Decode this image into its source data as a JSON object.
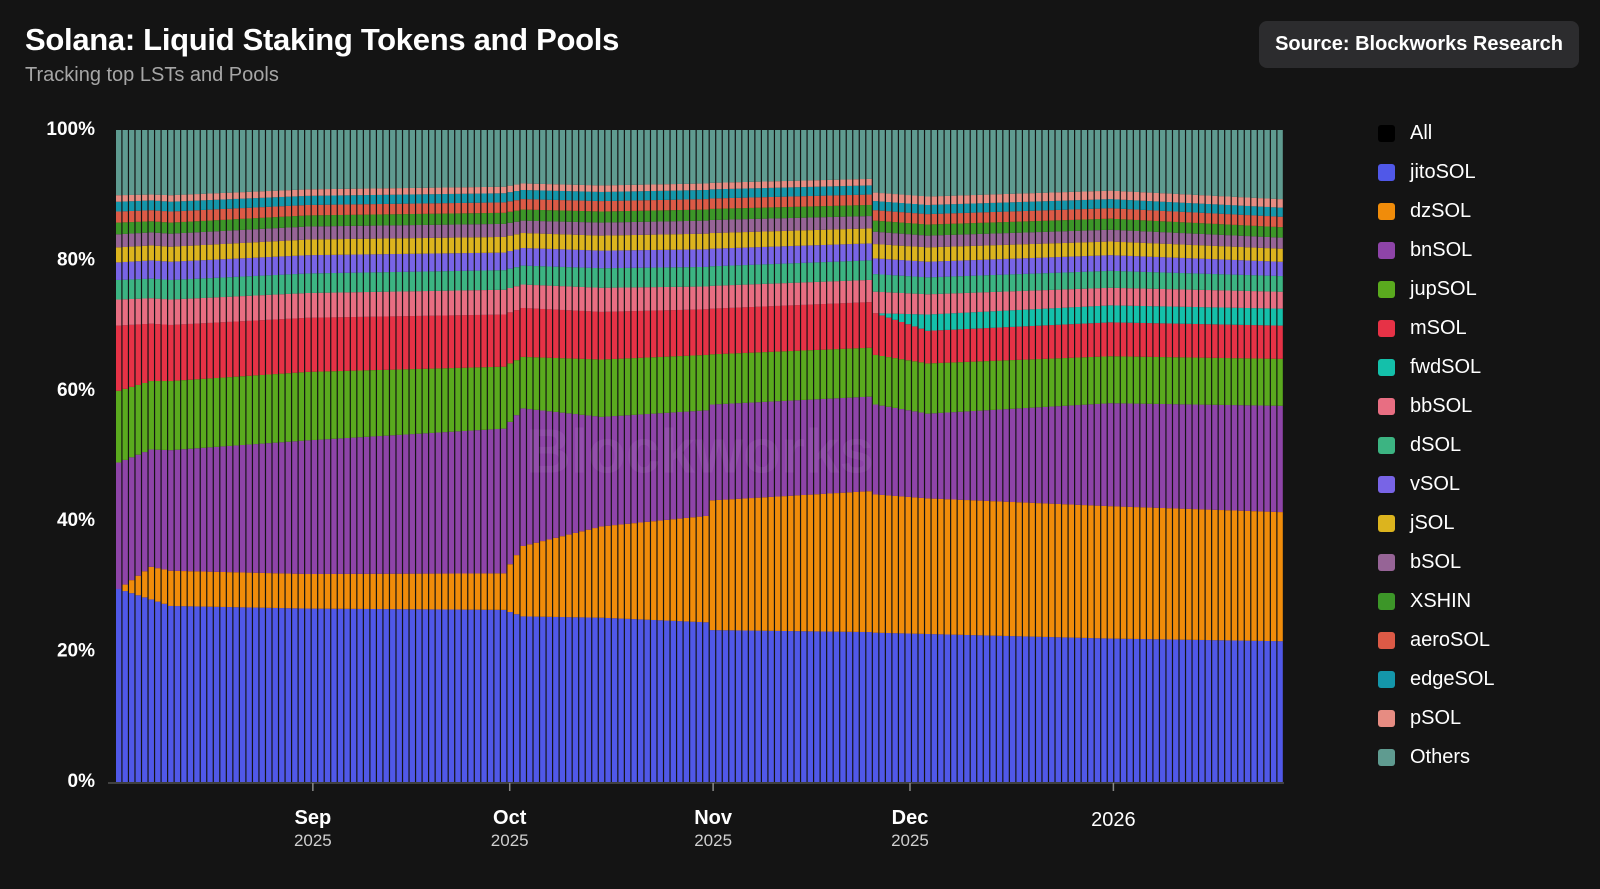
{
  "header": {
    "title": "Solana: Liquid Staking Tokens and Pools",
    "subtitle": "Tracking top LSTs and Pools",
    "source": "Source: Blockworks Research"
  },
  "watermark": "Blockworks",
  "legend": {
    "items": [
      {
        "label": "All",
        "color": "#000000"
      },
      {
        "label": "jitoSOL",
        "color": "#5058e8"
      },
      {
        "label": "dzSOL",
        "color": "#f08c0a"
      },
      {
        "label": "bnSOL",
        "color": "#8e44a8"
      },
      {
        "label": "jupSOL",
        "color": "#5aaa1e"
      },
      {
        "label": "mSOL",
        "color": "#e63246"
      },
      {
        "label": "fwdSOL",
        "color": "#14c0aa"
      },
      {
        "label": "bbSOL",
        "color": "#e86e82"
      },
      {
        "label": "dSOL",
        "color": "#3cb482"
      },
      {
        "label": "vSOL",
        "color": "#7864e6"
      },
      {
        "label": "jSOL",
        "color": "#dcb41e"
      },
      {
        "label": "bSOL",
        "color": "#966496"
      },
      {
        "label": "XSHIN",
        "color": "#3c9628"
      },
      {
        "label": "aeroSOL",
        "color": "#dc5a46"
      },
      {
        "label": "edgeSOL",
        "color": "#1496aa"
      },
      {
        "label": "pSOL",
        "color": "#e68c82"
      },
      {
        "label": "Others",
        "color": "#5f9b90"
      }
    ]
  },
  "chart_data": {
    "type": "bar",
    "stacked": true,
    "normalized": true,
    "title": "Solana: Liquid Staking Tokens and Pools",
    "subtitle": "Tracking top LSTs and Pools",
    "xlabel": "",
    "ylabel": "",
    "ylim": [
      0,
      100
    ],
    "y_ticks": [
      "0%",
      "20%",
      "40%",
      "60%",
      "80%",
      "100%"
    ],
    "x_ticks": [
      {
        "month": "Sep",
        "year": "2025",
        "date": "2025-09-01"
      },
      {
        "month": "Oct",
        "year": "2025",
        "date": "2025-10-01"
      },
      {
        "month": "Nov",
        "year": "2025",
        "date": "2025-11-01"
      },
      {
        "month": "Dec",
        "year": "2025",
        "date": "2025-12-01"
      },
      {
        "month": "",
        "year": "2026",
        "date": "2026-01-01"
      }
    ],
    "x_range": [
      "2025-08-02",
      "2026-01-27"
    ],
    "grid": false,
    "legend_position": "right",
    "bar_count": 179,
    "series_order": [
      "jitoSOL",
      "dzSOL",
      "bnSOL",
      "jupSOL",
      "mSOL",
      "fwdSOL",
      "bbSOL",
      "dSOL",
      "vSOL",
      "jSOL",
      "bSOL",
      "XSHIN",
      "aeroSOL",
      "edgeSOL",
      "pSOL",
      "Others"
    ],
    "keyframes": [
      {
        "date": "2025-08-02",
        "values": {
          "jitoSOL": 29.6,
          "dzSOL": 0.0,
          "bnSOL": 19.4,
          "jupSOL": 11.0,
          "mSOL": 10.0,
          "fwdSOL": 0.0,
          "bbSOL": 4.0,
          "dSOL": 3.0,
          "vSOL": 2.7,
          "jSOL": 2.3,
          "bSOL": 2.0,
          "XSHIN": 1.8,
          "aeroSOL": 1.7,
          "edgeSOL": 1.5,
          "pSOL": 1.0,
          "Others": 10.0
        }
      },
      {
        "date": "2025-08-07",
        "values": {
          "jitoSOL": 28.0,
          "dzSOL": 5.0,
          "bnSOL": 18.0,
          "jupSOL": 10.5,
          "mSOL": 8.8,
          "fwdSOL": 0.0,
          "bbSOL": 3.9,
          "dSOL": 3.0,
          "vSOL": 2.8,
          "jSOL": 2.3,
          "bSOL": 2.0,
          "XSHIN": 1.7,
          "aeroSOL": 1.7,
          "edgeSOL": 1.5,
          "pSOL": 0.9,
          "Others": 9.9
        }
      },
      {
        "date": "2025-08-10",
        "values": {
          "jitoSOL": 27.0,
          "dzSOL": 5.4,
          "bnSOL": 18.5,
          "jupSOL": 10.6,
          "mSOL": 8.6,
          "fwdSOL": 0.0,
          "bbSOL": 3.9,
          "dSOL": 3.0,
          "vSOL": 2.8,
          "jSOL": 2.3,
          "bSOL": 2.0,
          "XSHIN": 1.7,
          "aeroSOL": 1.7,
          "edgeSOL": 1.5,
          "pSOL": 1.0,
          "Others": 10.0
        }
      },
      {
        "date": "2025-08-31",
        "values": {
          "jitoSOL": 26.6,
          "dzSOL": 5.3,
          "bnSOL": 20.5,
          "jupSOL": 10.5,
          "mSOL": 8.3,
          "fwdSOL": 0.0,
          "bbSOL": 3.8,
          "dSOL": 3.0,
          "vSOL": 2.8,
          "jSOL": 2.4,
          "bSOL": 2.0,
          "XSHIN": 1.7,
          "aeroSOL": 1.6,
          "edgeSOL": 1.4,
          "pSOL": 1.0,
          "Others": 9.1
        }
      },
      {
        "date": "2025-09-30",
        "values": {
          "jitoSOL": 26.4,
          "dzSOL": 5.6,
          "bnSOL": 22.2,
          "jupSOL": 9.5,
          "mSOL": 8.0,
          "fwdSOL": 0.0,
          "bbSOL": 3.8,
          "dSOL": 3.0,
          "vSOL": 2.7,
          "jSOL": 2.4,
          "bSOL": 2.0,
          "XSHIN": 1.7,
          "aeroSOL": 1.6,
          "edgeSOL": 1.4,
          "pSOL": 1.0,
          "Others": 8.7
        }
      },
      {
        "date": "2025-10-03",
        "values": {
          "jitoSOL": 25.4,
          "dzSOL": 10.8,
          "bnSOL": 21.1,
          "jupSOL": 7.9,
          "mSOL": 7.5,
          "fwdSOL": 0.0,
          "bbSOL": 3.6,
          "dSOL": 2.9,
          "vSOL": 2.7,
          "jSOL": 2.3,
          "bSOL": 1.9,
          "XSHIN": 1.7,
          "aeroSOL": 1.6,
          "edgeSOL": 1.4,
          "pSOL": 1.0,
          "Others": 8.2
        }
      },
      {
        "date": "2025-10-15",
        "values": {
          "jitoSOL": 25.2,
          "dzSOL": 14.0,
          "bnSOL": 16.8,
          "jupSOL": 8.8,
          "mSOL": 7.3,
          "fwdSOL": 0.0,
          "bbSOL": 3.7,
          "dSOL": 3.0,
          "vSOL": 2.7,
          "jSOL": 2.3,
          "bSOL": 2.0,
          "XSHIN": 1.7,
          "aeroSOL": 1.6,
          "edgeSOL": 1.4,
          "pSOL": 1.0,
          "Others": 8.5
        }
      },
      {
        "date": "2025-10-31",
        "values": {
          "jitoSOL": 24.5,
          "dzSOL": 16.3,
          "bnSOL": 16.2,
          "jupSOL": 8.5,
          "mSOL": 7.0,
          "fwdSOL": 0.0,
          "bbSOL": 3.5,
          "dSOL": 3.0,
          "vSOL": 2.7,
          "jSOL": 2.4,
          "bSOL": 2.0,
          "XSHIN": 1.7,
          "aeroSOL": 1.6,
          "edgeSOL": 1.4,
          "pSOL": 1.0,
          "Others": 8.2
        }
      },
      {
        "date": "2025-11-01",
        "values": {
          "jitoSOL": 23.3,
          "dzSOL": 19.9,
          "bnSOL": 14.7,
          "jupSOL": 7.7,
          "mSOL": 7.0,
          "fwdSOL": 0.0,
          "bbSOL": 3.5,
          "dSOL": 3.0,
          "vSOL": 2.7,
          "jSOL": 2.4,
          "bSOL": 2.0,
          "XSHIN": 1.7,
          "aeroSOL": 1.6,
          "edgeSOL": 1.4,
          "pSOL": 1.0,
          "Others": 8.1
        }
      },
      {
        "date": "2025-11-25",
        "values": {
          "jitoSOL": 23.0,
          "dzSOL": 21.6,
          "bnSOL": 14.5,
          "jupSOL": 7.5,
          "mSOL": 7.0,
          "fwdSOL": 0.0,
          "bbSOL": 3.4,
          "dSOL": 3.0,
          "vSOL": 2.6,
          "jSOL": 2.3,
          "bSOL": 1.9,
          "XSHIN": 1.7,
          "aeroSOL": 1.6,
          "edgeSOL": 1.4,
          "pSOL": 1.0,
          "Others": 7.5
        }
      },
      {
        "date": "2025-11-26",
        "values": {
          "jitoSOL": 22.9,
          "dzSOL": 21.2,
          "bnSOL": 13.8,
          "jupSOL": 7.6,
          "mSOL": 6.4,
          "fwdSOL": 0.0,
          "bbSOL": 3.3,
          "dSOL": 2.7,
          "vSOL": 2.4,
          "jSOL": 2.2,
          "bSOL": 1.9,
          "XSHIN": 1.7,
          "aeroSOL": 1.6,
          "edgeSOL": 1.4,
          "pSOL": 1.3,
          "Others": 9.6
        }
      },
      {
        "date": "2025-12-04",
        "values": {
          "jitoSOL": 22.7,
          "dzSOL": 20.8,
          "bnSOL": 13.0,
          "jupSOL": 7.7,
          "mSOL": 5.0,
          "fwdSOL": 2.5,
          "bbSOL": 3.1,
          "dSOL": 2.6,
          "vSOL": 2.4,
          "jSOL": 2.2,
          "bSOL": 1.8,
          "XSHIN": 1.7,
          "aeroSOL": 1.6,
          "edgeSOL": 1.4,
          "pSOL": 1.3,
          "Others": 10.2
        }
      },
      {
        "date": "2026-01-01",
        "values": {
          "jitoSOL": 22.0,
          "dzSOL": 20.3,
          "bnSOL": 15.8,
          "jupSOL": 7.2,
          "mSOL": 5.2,
          "fwdSOL": 2.6,
          "bbSOL": 2.7,
          "dSOL": 2.6,
          "vSOL": 2.4,
          "jSOL": 2.1,
          "bSOL": 1.8,
          "XSHIN": 1.7,
          "aeroSOL": 1.6,
          "edgeSOL": 1.4,
          "pSOL": 1.3,
          "Others": 9.3
        }
      },
      {
        "date": "2026-01-27",
        "values": {
          "jitoSOL": 21.6,
          "dzSOL": 19.8,
          "bnSOL": 16.3,
          "jupSOL": 7.2,
          "mSOL": 5.1,
          "fwdSOL": 2.6,
          "bbSOL": 2.6,
          "dSOL": 2.4,
          "vSOL": 2.2,
          "jSOL": 2.0,
          "bSOL": 1.7,
          "XSHIN": 1.6,
          "aeroSOL": 1.6,
          "edgeSOL": 1.4,
          "pSOL": 1.3,
          "Others": 10.6
        }
      }
    ]
  }
}
